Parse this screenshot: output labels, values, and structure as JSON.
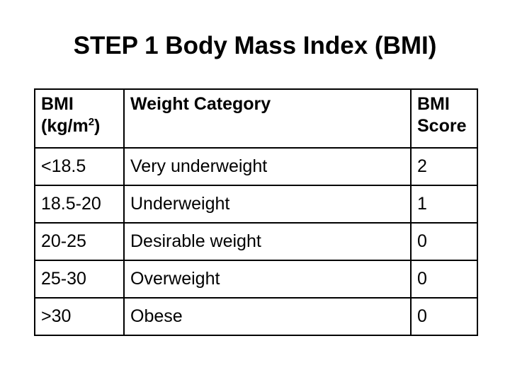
{
  "slide": {
    "title": "STEP 1 Body Mass Index (BMI)"
  },
  "table": {
    "headers": {
      "bmi_line1": "BMI",
      "bmi_line2_pre": "(kg/m",
      "bmi_line2_sup": "2",
      "bmi_line2_post": ")",
      "category": "Weight Category",
      "score_line1": "BMI",
      "score_line2": "Score"
    },
    "rows": [
      {
        "bmi": "<18.5",
        "category": "Very underweight",
        "score": "2"
      },
      {
        "bmi": "18.5-20",
        "category": "Underweight",
        "score": "1"
      },
      {
        "bmi": "20-25",
        "category": "Desirable weight",
        "score": "0"
      },
      {
        "bmi": "25-30",
        "category": "Overweight",
        "score": "0"
      },
      {
        "bmi": ">30",
        "category": "Obese",
        "score": "0"
      }
    ]
  }
}
